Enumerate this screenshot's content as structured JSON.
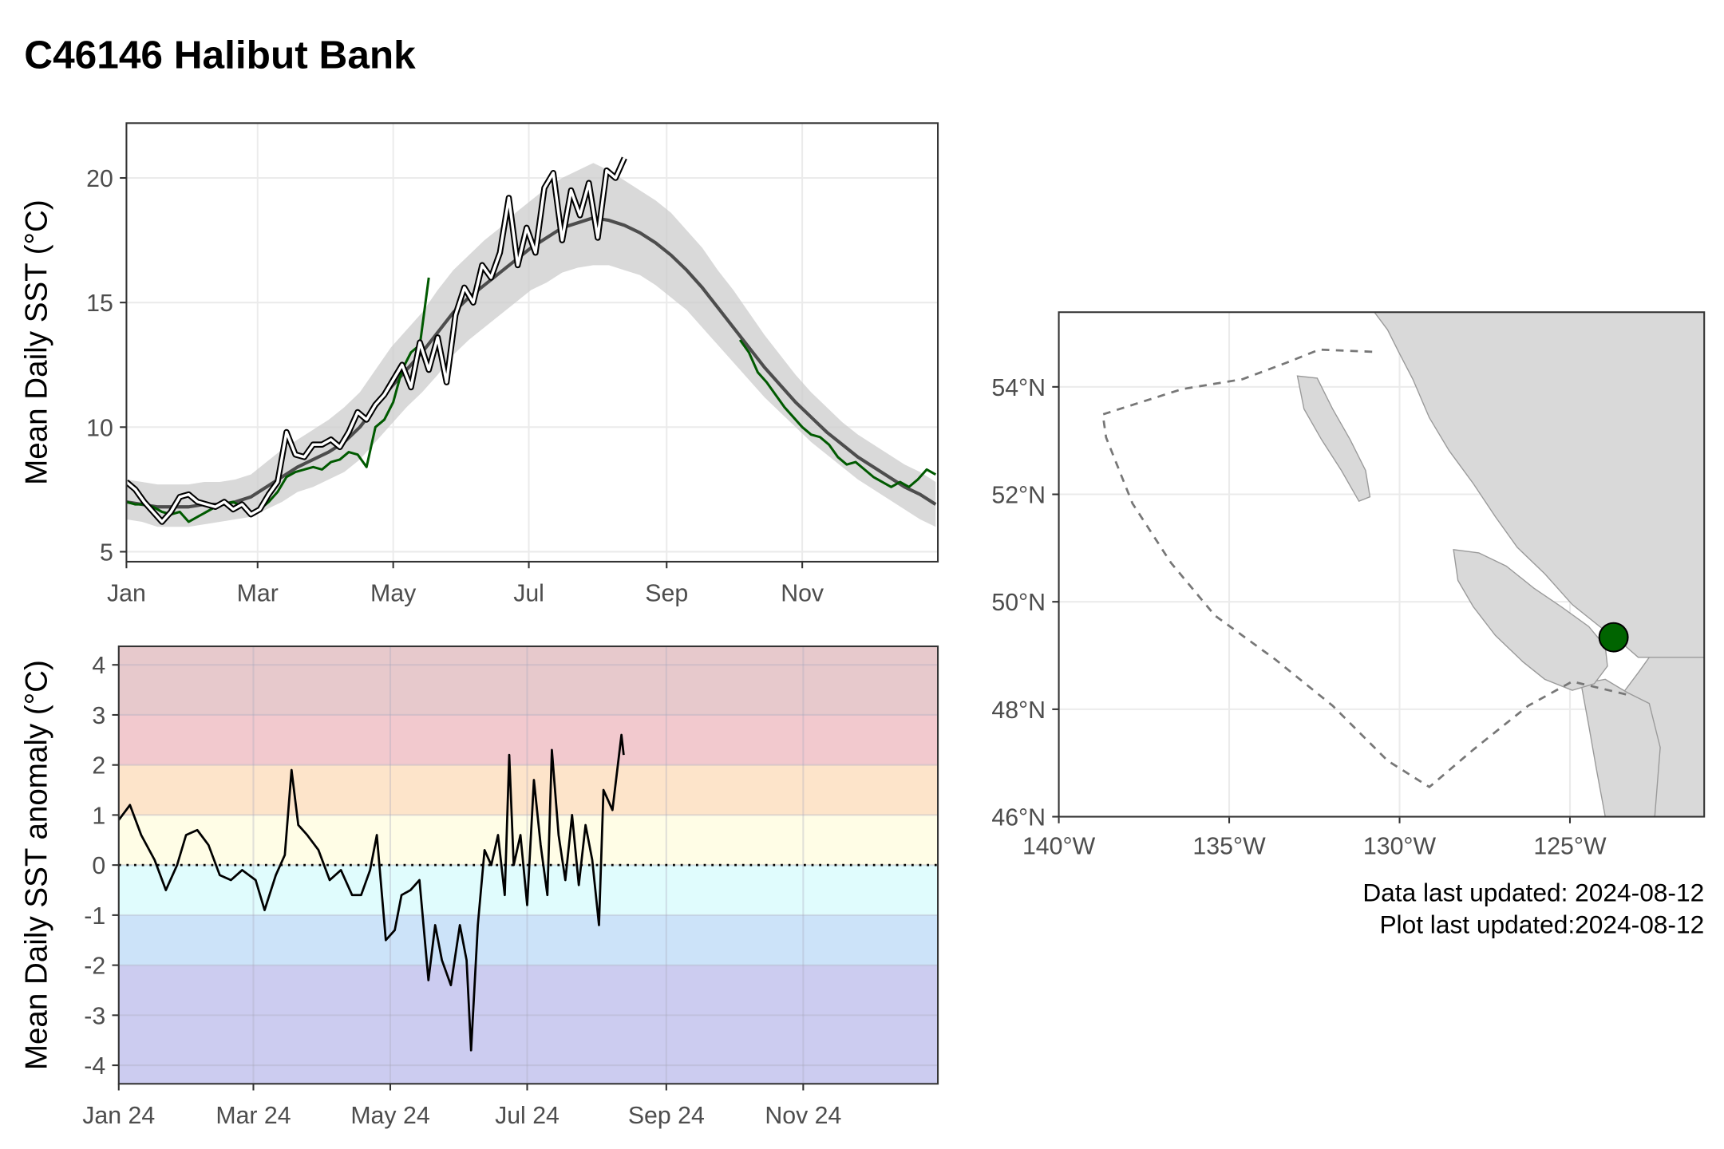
{
  "title": "C46146 Halibut Bank",
  "notes": [
    "Data last updated: 2024-08-12",
    "Plot last updated:2024-08-12"
  ],
  "chart_data": [
    {
      "type": "line",
      "ylabel": "Mean Daily SST (°C)",
      "xlim": [
        1,
        366
      ],
      "xticks": [
        {
          "value": 1,
          "label": "Jan"
        },
        {
          "value": 60,
          "label": "Mar"
        },
        {
          "value": 121,
          "label": "May"
        },
        {
          "value": 182,
          "label": "Jul"
        },
        {
          "value": 244,
          "label": "Sep"
        },
        {
          "value": 305,
          "label": "Nov"
        }
      ],
      "ylim": [
        4.6,
        22.2
      ],
      "yticks": [
        5,
        10,
        15,
        20
      ],
      "grid": true,
      "x": [
        1,
        8,
        15,
        22,
        29,
        36,
        43,
        50,
        57,
        64,
        71,
        78,
        85,
        92,
        99,
        106,
        113,
        120,
        127,
        134,
        141,
        148,
        155,
        162,
        169,
        176,
        183,
        190,
        197,
        204,
        211,
        218,
        225,
        232,
        239,
        246,
        253,
        260,
        267,
        274,
        281,
        288,
        295,
        302,
        309,
        316,
        323,
        330,
        337,
        344,
        351,
        358,
        365
      ],
      "band": {
        "color": "#cccccc",
        "lower": [
          6.3,
          6.2,
          6.0,
          6.0,
          6.0,
          6.1,
          6.2,
          6.3,
          6.4,
          6.7,
          7.0,
          7.4,
          7.6,
          7.9,
          8.2,
          8.7,
          9.4,
          10.1,
          10.8,
          11.4,
          12.1,
          12.9,
          13.5,
          14.0,
          14.5,
          15.0,
          15.5,
          15.8,
          16.2,
          16.4,
          16.5,
          16.5,
          16.3,
          16.1,
          15.7,
          15.2,
          14.7,
          14.0,
          13.3,
          12.6,
          11.9,
          11.2,
          10.6,
          10.0,
          9.4,
          8.9,
          8.4,
          7.9,
          7.5,
          7.1,
          6.7,
          6.3,
          6.0
        ],
        "upper": [
          7.9,
          7.8,
          7.7,
          7.7,
          7.7,
          7.8,
          7.8,
          7.9,
          8.1,
          8.6,
          9.1,
          9.5,
          9.9,
          10.3,
          10.8,
          11.4,
          12.3,
          13.2,
          13.9,
          14.6,
          15.5,
          16.3,
          16.9,
          17.5,
          18.0,
          18.6,
          19.1,
          19.6,
          20.0,
          20.3,
          20.6,
          20.3,
          19.9,
          19.5,
          19.1,
          18.6,
          17.9,
          17.2,
          16.3,
          15.5,
          14.6,
          13.7,
          12.9,
          12.1,
          11.4,
          10.8,
          10.2,
          9.7,
          9.3,
          8.9,
          8.5,
          8.2,
          7.8
        ]
      },
      "series": [
        {
          "color": "#4d4d4d",
          "width": 3,
          "values": [
            7.0,
            6.9,
            6.8,
            6.8,
            6.8,
            6.9,
            6.9,
            7.0,
            7.2,
            7.6,
            8.0,
            8.4,
            8.7,
            9.0,
            9.4,
            10.0,
            10.8,
            11.6,
            12.3,
            13.0,
            13.8,
            14.6,
            15.2,
            15.7,
            16.2,
            16.7,
            17.2,
            17.6,
            18.0,
            18.2,
            18.4,
            18.3,
            18.1,
            17.8,
            17.4,
            16.9,
            16.3,
            15.6,
            14.8,
            14.0,
            13.2,
            12.4,
            11.7,
            11.0,
            10.4,
            9.8,
            9.3,
            8.8,
            8.4,
            8.0,
            7.6,
            7.3,
            6.9
          ]
        },
        {
          "color": "#005a00",
          "width": 2.2,
          "x": [
            1,
            5,
            9,
            13,
            17,
            21,
            25,
            29,
            33,
            37,
            41,
            45,
            49,
            53,
            57,
            61,
            65,
            69,
            73,
            77,
            81,
            85,
            89,
            93,
            97,
            101,
            105,
            109,
            113,
            117,
            121,
            125,
            129,
            133,
            137,
            141,
            277,
            281,
            285,
            289,
            293,
            297,
            301,
            305,
            309,
            313,
            317,
            321,
            325,
            329,
            333,
            337,
            341,
            345,
            349,
            353,
            357,
            361,
            365
          ],
          "values": [
            7.0,
            6.9,
            6.9,
            6.8,
            6.6,
            6.5,
            6.6,
            6.2,
            6.4,
            6.6,
            6.8,
            6.9,
            7.0,
            6.8,
            6.6,
            6.7,
            7.0,
            7.4,
            8.0,
            8.2,
            8.3,
            8.4,
            8.3,
            8.6,
            8.7,
            9.0,
            8.9,
            8.4,
            10.0,
            10.3,
            11.0,
            12.3,
            13.0,
            13.3,
            16.0,
            null,
            13.5,
            13.0,
            12.2,
            11.8,
            11.3,
            10.8,
            10.4,
            10.0,
            9.7,
            9.6,
            9.3,
            8.8,
            8.5,
            8.6,
            8.3,
            8.0,
            7.8,
            7.6,
            7.8,
            7.6,
            7.9,
            8.3,
            8.1
          ]
        },
        {
          "color": "#ffffff",
          "outline": "#000000",
          "width": 2.5,
          "x": [
            1,
            5,
            9,
            13,
            17,
            21,
            25,
            29,
            33,
            37,
            41,
            45,
            49,
            53,
            57,
            61,
            65,
            69,
            73,
            77,
            81,
            85,
            89,
            93,
            97,
            101,
            105,
            109,
            113,
            117,
            121,
            125,
            129,
            133,
            137,
            141,
            145,
            149,
            153,
            157,
            161,
            165,
            169,
            173,
            177,
            181,
            185,
            189,
            193,
            197,
            201,
            205,
            209,
            213,
            217,
            221,
            225
          ],
          "values": [
            7.8,
            7.5,
            7.0,
            6.6,
            6.2,
            6.6,
            7.2,
            7.3,
            7.0,
            6.9,
            6.8,
            7.0,
            6.7,
            6.9,
            6.5,
            6.7,
            7.3,
            7.8,
            9.8,
            8.9,
            8.8,
            9.3,
            9.3,
            9.5,
            9.2,
            9.8,
            10.6,
            10.3,
            10.9,
            11.3,
            11.9,
            12.5,
            11.6,
            13.4,
            12.3,
            13.6,
            11.8,
            14.5,
            15.6,
            15.0,
            16.5,
            16.0,
            17.0,
            19.2,
            16.5,
            18.0,
            17.0,
            19.6,
            20.2,
            17.5,
            19.5,
            18.5,
            19.8,
            17.6,
            20.3,
            20.0,
            20.8
          ]
        }
      ]
    },
    {
      "type": "line",
      "ylabel": "Mean Daily SST anomaly (°C)",
      "xlim": [
        1,
        366
      ],
      "xticks": [
        {
          "value": 1,
          "label": "Jan 24"
        },
        {
          "value": 61,
          "label": "Mar 24"
        },
        {
          "value": 122,
          "label": "May 24"
        },
        {
          "value": 183,
          "label": "Jul 24"
        },
        {
          "value": 245,
          "label": "Sep 24"
        },
        {
          "value": 306,
          "label": "Nov 24"
        }
      ],
      "ylim": [
        -4.37,
        4.37
      ],
      "yticks": [
        -4,
        -3,
        -2,
        -1,
        0,
        1,
        2,
        3,
        4
      ],
      "grid": true,
      "bands": {
        "breaks": [
          -2,
          -1,
          0,
          1,
          2,
          3
        ],
        "colors": [
          "#ccccf0",
          "#cce3f9",
          "#e0fcfd",
          "#fffde6",
          "#fde4ca",
          "#f2c9ce",
          "#e7c9cc"
        ]
      },
      "hline": 0,
      "x": [
        1,
        6,
        11,
        17,
        22,
        27,
        31,
        36,
        41,
        46,
        51,
        56,
        62,
        66,
        71,
        75,
        78,
        81,
        85,
        90,
        95,
        100,
        105,
        109,
        113,
        116,
        120,
        124,
        127,
        131,
        135,
        139,
        142,
        145,
        149,
        153,
        156,
        158,
        161,
        164,
        167,
        170,
        173,
        175,
        177,
        180,
        183,
        186,
        189,
        192,
        194,
        197,
        200,
        203,
        206,
        209,
        212,
        215,
        217,
        221,
        225,
        226
      ],
      "series": [
        {
          "color": "#000000",
          "width": 2,
          "values": [
            0.9,
            1.2,
            0.6,
            0.1,
            -0.5,
            0.0,
            0.6,
            0.7,
            0.4,
            -0.2,
            -0.3,
            -0.1,
            -0.3,
            -0.9,
            -0.2,
            0.2,
            1.9,
            0.8,
            0.6,
            0.3,
            -0.3,
            -0.1,
            -0.6,
            -0.6,
            -0.1,
            0.6,
            -1.5,
            -1.3,
            -0.6,
            -0.5,
            -0.3,
            -2.3,
            -1.2,
            -1.9,
            -2.4,
            -1.2,
            -1.9,
            -3.7,
            -1.2,
            0.3,
            0.0,
            0.6,
            -0.6,
            2.2,
            0.0,
            0.6,
            -0.8,
            1.7,
            0.4,
            -0.6,
            2.3,
            0.6,
            -0.3,
            1.0,
            -0.4,
            0.8,
            0.1,
            -1.2,
            1.5,
            1.1,
            2.6,
            2.2
          ]
        }
      ]
    },
    {
      "type": "map",
      "xlim": [
        -140,
        -121.06
      ],
      "xticks": [
        {
          "value": -140,
          "label": "140°W"
        },
        {
          "value": -135,
          "label": "135°W"
        },
        {
          "value": -130,
          "label": "130°W"
        },
        {
          "value": -125,
          "label": "125°W"
        }
      ],
      "ylim": [
        46,
        55.39
      ],
      "yticks": [
        {
          "value": 46,
          "label": "46°N"
        },
        {
          "value": 48,
          "label": "48°N"
        },
        {
          "value": 50,
          "label": "50°N"
        },
        {
          "value": 52,
          "label": "52°N"
        },
        {
          "value": 54,
          "label": "54°N"
        }
      ],
      "grid": true,
      "points": [
        {
          "lon": -123.72,
          "lat": 49.34,
          "color": "#006400"
        }
      ]
    }
  ]
}
